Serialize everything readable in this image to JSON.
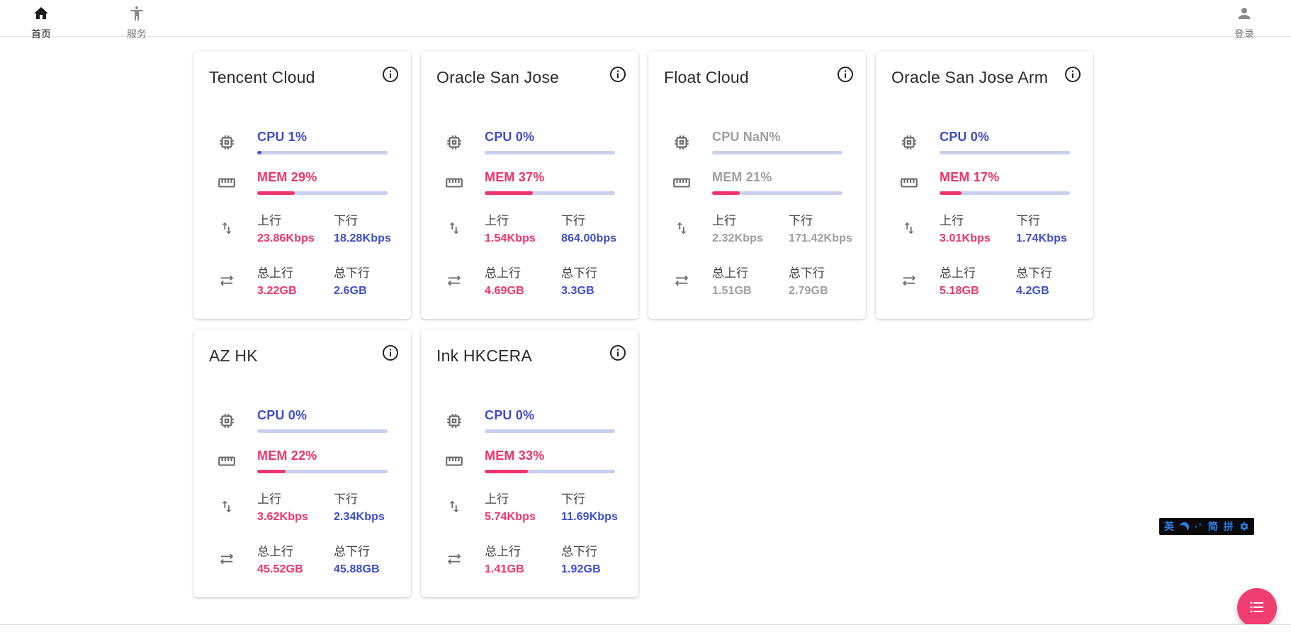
{
  "nav": {
    "items": [
      {
        "label": "首页",
        "icon": "home-icon",
        "active": true
      },
      {
        "label": "服务",
        "icon": "services-person-icon",
        "active": false
      }
    ],
    "login": {
      "label": "登录",
      "icon": "account-icon"
    }
  },
  "labels": {
    "up": "上行",
    "down": "下行",
    "total_up": "总上行",
    "total_down": "总下行"
  },
  "servers": [
    {
      "name": "Tencent Cloud",
      "online": true,
      "cpu_text": "CPU 1%",
      "cpu_pct": 1,
      "mem_text": "MEM 29%",
      "mem_pct": 29,
      "up": "23.86Kbps",
      "down": "18.28Kbps",
      "total_up": "3.22GB",
      "total_down": "2.6GB"
    },
    {
      "name": "Oracle San Jose",
      "online": true,
      "cpu_text": "CPU 0%",
      "cpu_pct": 0,
      "mem_text": "MEM 37%",
      "mem_pct": 37,
      "up": "1.54Kbps",
      "down": "864.00bps",
      "total_up": "4.69GB",
      "total_down": "3.3GB"
    },
    {
      "name": "Float Cloud",
      "online": false,
      "cpu_text": "CPU NaN%",
      "cpu_pct": 0,
      "mem_text": "MEM 21%",
      "mem_pct": 21,
      "up": "2.32Kbps",
      "down": "171.42Kbps",
      "total_up": "1.51GB",
      "total_down": "2.79GB"
    },
    {
      "name": "Oracle San Jose Arm",
      "online": true,
      "cpu_text": "CPU 0%",
      "cpu_pct": 0,
      "mem_text": "MEM 17%",
      "mem_pct": 17,
      "up": "3.01Kbps",
      "down": "1.74Kbps",
      "total_up": "5.18GB",
      "total_down": "4.2GB"
    },
    {
      "name": "AZ HK",
      "online": true,
      "cpu_text": "CPU 0%",
      "cpu_pct": 0,
      "mem_text": "MEM 22%",
      "mem_pct": 22,
      "up": "3.62Kbps",
      "down": "2.34Kbps",
      "total_up": "45.52GB",
      "total_down": "45.88GB"
    },
    {
      "name": "Ink HKCERA",
      "online": true,
      "cpu_text": "CPU 0%",
      "cpu_pct": 0,
      "mem_text": "MEM 33%",
      "mem_pct": 33,
      "up": "5.74Kbps",
      "down": "11.69Kbps",
      "total_up": "1.41GB",
      "total_down": "1.92GB"
    }
  ],
  "colors": {
    "accent_pink": "#f0336e",
    "accent_blue": "#3d4ec8",
    "bar_track": "#c9cfef",
    "offline_gray": "#9e9e9e",
    "ime_blue": "#2b7fe8",
    "fab_pink": "#f13e72"
  },
  "ime": {
    "lang_indicator": "英",
    "moon_icon": "moon-icon",
    "punct_indicator": "·’",
    "charset_indicator": "简",
    "scheme_indicator": "拼",
    "settings_icon": "gear-icon"
  },
  "fab": {
    "icon": "list-icon"
  }
}
